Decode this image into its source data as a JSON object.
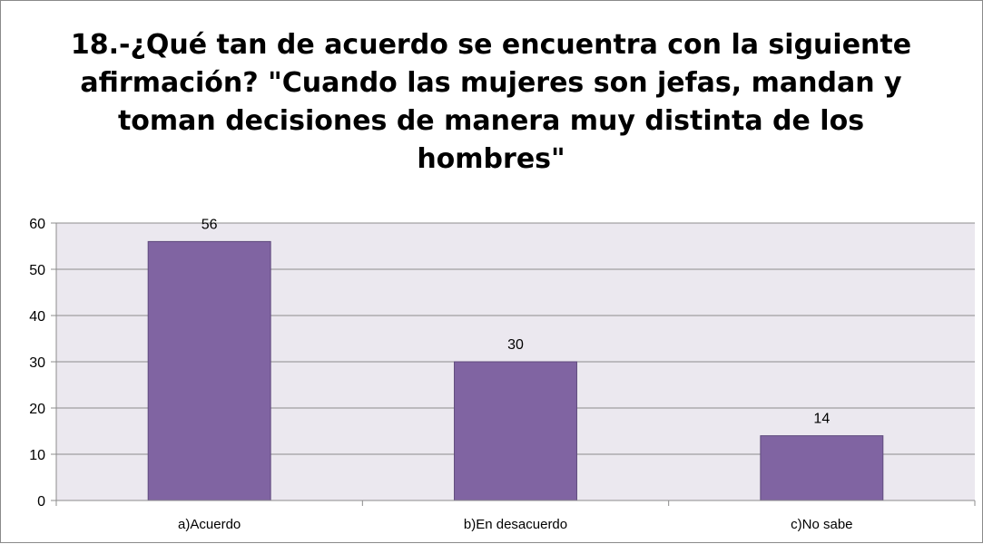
{
  "chart_data": {
    "type": "bar",
    "title": "18.-¿Qué tan de acuerdo se encuentra con la siguiente afirmación? \"Cuando las mujeres son jefas, mandan y toman decisiones de manera muy distinta de los hombres\"",
    "categories": [
      "a)Acuerdo",
      "b)En desacuerdo",
      "c)No sabe"
    ],
    "values": [
      56,
      30,
      14
    ],
    "data_labels": [
      "56",
      "30",
      "14"
    ],
    "ylim": [
      0,
      60
    ],
    "yticks": [
      0,
      10,
      20,
      30,
      40,
      50,
      60
    ],
    "grid": true,
    "legend": "none",
    "bar_color": "#8064a2",
    "plot_background": "#ebe8ef"
  }
}
